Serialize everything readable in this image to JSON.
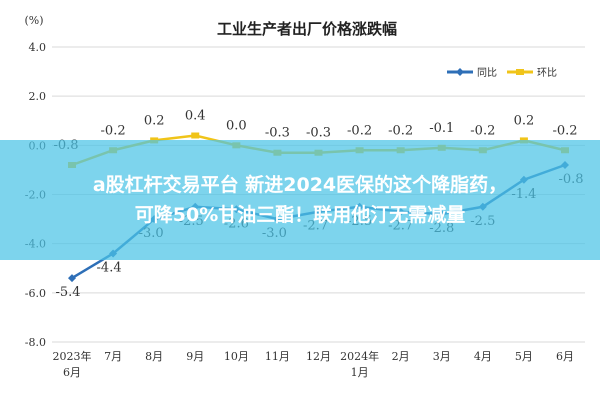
{
  "chart_data": {
    "type": "line",
    "title": "工业生产者出厂价格涨跌幅",
    "unit": "(%)",
    "ylim": [
      -8.0,
      4.0
    ],
    "yticks": [
      "4.0",
      "2.0",
      "0.0",
      "-2.0",
      "-4.0",
      "-6.0",
      "-8.0"
    ],
    "ytick_values": [
      4,
      2,
      0,
      -2,
      -4,
      -6,
      -8
    ],
    "categories": [
      [
        "2023年",
        "6月"
      ],
      [
        "7月"
      ],
      [
        "8月"
      ],
      [
        "9月"
      ],
      [
        "10月"
      ],
      [
        "11月"
      ],
      [
        "12月"
      ],
      [
        "2024年",
        "1月"
      ],
      [
        "2月"
      ],
      [
        "3月"
      ],
      [
        "4月"
      ],
      [
        "5月"
      ],
      [
        "6月"
      ]
    ],
    "legend_position": "top-right",
    "grid": "horizontal",
    "series": [
      {
        "name": "同比",
        "color": "#2e6fb7",
        "values": [
          -5.4,
          -4.4,
          -3.0,
          -2.5,
          -2.6,
          -3.0,
          -2.7,
          -2.5,
          -2.7,
          -2.8,
          -2.5,
          -1.4,
          -0.8
        ],
        "labels": [
          "-5.4",
          "-4.4",
          "-3.0",
          "-2.5",
          "-2.6",
          "-3.0",
          "-2.7",
          "-2.5",
          "-2.7",
          "-2.8",
          "-2.5",
          "-1.4",
          "-0.8"
        ]
      },
      {
        "name": "环比",
        "color": "#f0c419",
        "values": [
          -0.8,
          -0.2,
          0.2,
          0.4,
          0.0,
          -0.3,
          -0.3,
          -0.2,
          -0.2,
          -0.1,
          -0.2,
          0.2,
          -0.2
        ],
        "labels": [
          "-0.8",
          "-0.2",
          "0.2",
          "0.4",
          "0.0",
          "-0.3",
          "-0.3",
          "-0.2",
          "-0.2",
          "-0.1",
          "-0.2",
          "0.2",
          "-0.2"
        ]
      }
    ]
  },
  "banner": {
    "line1": "a股杠杆交易平台 新进2024医保的这个降脂药，",
    "line2": "可降50%甘油三酯！联用他汀无需减量"
  }
}
